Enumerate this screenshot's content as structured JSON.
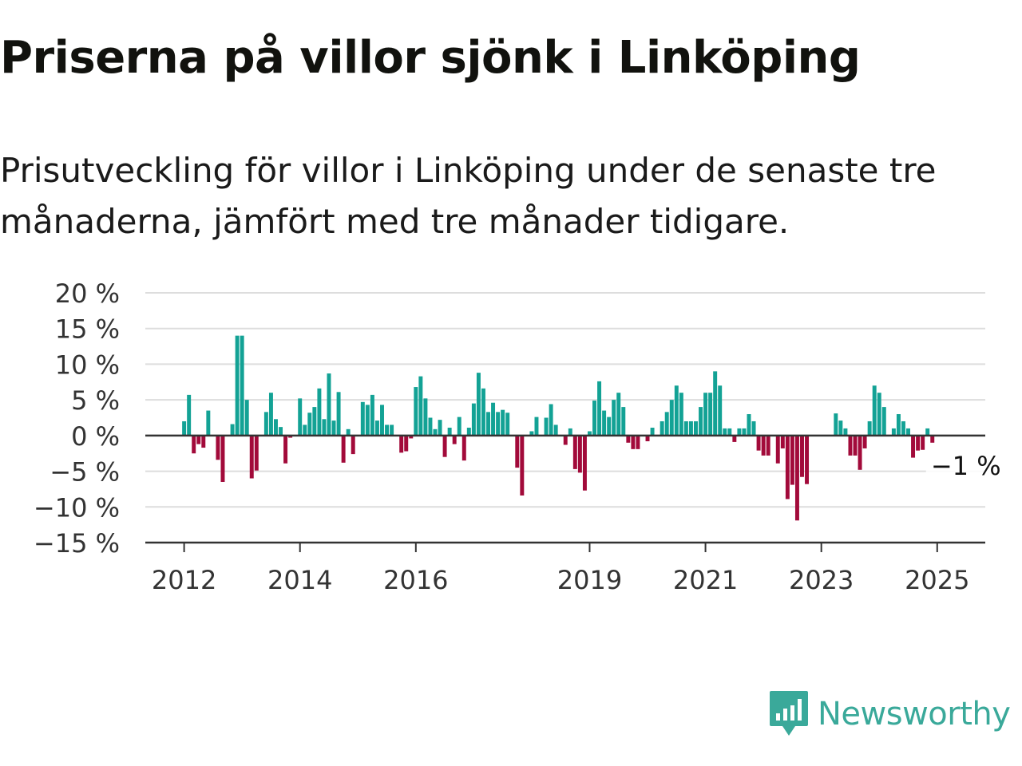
{
  "title": "Priserna på villor sjönk i Linköping",
  "subtitle": "Prisutveckling för villor i Linköping under de senaste tre månaderna, jämfört med tre månader tidigare.",
  "brand": {
    "name": "Newsworthy",
    "icon": "newsworthy-logo-icon",
    "color": "#3aa99a"
  },
  "colors": {
    "positive": "#13a295",
    "negative": "#a20a3a",
    "grid": "#dddddd",
    "axis": "#333333"
  },
  "chart_data": {
    "type": "bar",
    "title": "",
    "xlabel": "",
    "ylabel": "",
    "unit": "%",
    "ylim": [
      -15,
      20
    ],
    "y_ticks": [
      20,
      15,
      10,
      5,
      0,
      -5,
      -10,
      -15
    ],
    "y_tick_labels": [
      "20 %",
      "15 %",
      "10 %",
      "5 %",
      "0 %",
      "−5 %",
      "−10 %",
      "−15 %"
    ],
    "x_ticks": [
      "2012",
      "2014",
      "2016",
      "2019",
      "2021",
      "2023",
      "2025"
    ],
    "x_tick_positions": [
      2012.0,
      2014.0,
      2016.0,
      2019.0,
      2021.0,
      2023.0,
      2025.0
    ],
    "x_range": [
      2011.33,
      2025.83
    ],
    "start": "2012-01",
    "grid": true,
    "legend": "none",
    "values": [
      2,
      5.7,
      -2.5,
      -1.2,
      -1.7,
      3.5,
      0,
      -3.4,
      -6.5,
      0,
      1.6,
      14,
      14,
      5,
      -6,
      -4.9,
      0,
      3.3,
      6,
      2.3,
      1.2,
      -3.9,
      -0.3,
      0,
      5.2,
      1.5,
      3.2,
      4,
      6.6,
      2.3,
      8.7,
      2.1,
      6.1,
      -3.8,
      0.9,
      -2.6,
      0,
      4.7,
      4.3,
      5.7,
      2.1,
      4.3,
      1.5,
      1.5,
      0,
      -2.4,
      -2.2,
      -0.4,
      6.8,
      8.3,
      5.2,
      2.5,
      0.9,
      2.2,
      -3,
      1.1,
      -1.2,
      2.6,
      -3.5,
      1.1,
      4.5,
      8.8,
      6.6,
      3.3,
      4.6,
      3.3,
      3.6,
      3.2,
      0,
      -4.5,
      -8.4,
      0,
      0.6,
      2.6,
      0,
      2.5,
      4.4,
      1.5,
      0,
      -1.3,
      1,
      -4.7,
      -5.2,
      -7.7,
      0.6,
      4.9,
      7.6,
      3.5,
      2.6,
      5,
      6,
      4,
      -1,
      -1.9,
      -1.9,
      0,
      -0.8,
      1.1,
      0,
      2,
      3.3,
      5,
      7,
      6,
      2,
      2,
      2,
      4,
      6,
      6,
      9,
      7,
      1,
      1,
      -0.9,
      1,
      1,
      3,
      2,
      -2.1,
      -2.8,
      -2.8,
      0,
      -3.9,
      -1.8,
      -8.9,
      -6.9,
      -11.9,
      -5.8,
      -6.8,
      0,
      0,
      0,
      0,
      0,
      3.1,
      2.1,
      1,
      -2.8,
      -2.8,
      -4.8,
      -1.8,
      2,
      7,
      6,
      4,
      0,
      1,
      3,
      2,
      1,
      -3.1,
      -2.1,
      -2,
      1,
      -1
    ],
    "annotations": [
      {
        "text": "−1 %",
        "index": 155
      }
    ]
  }
}
